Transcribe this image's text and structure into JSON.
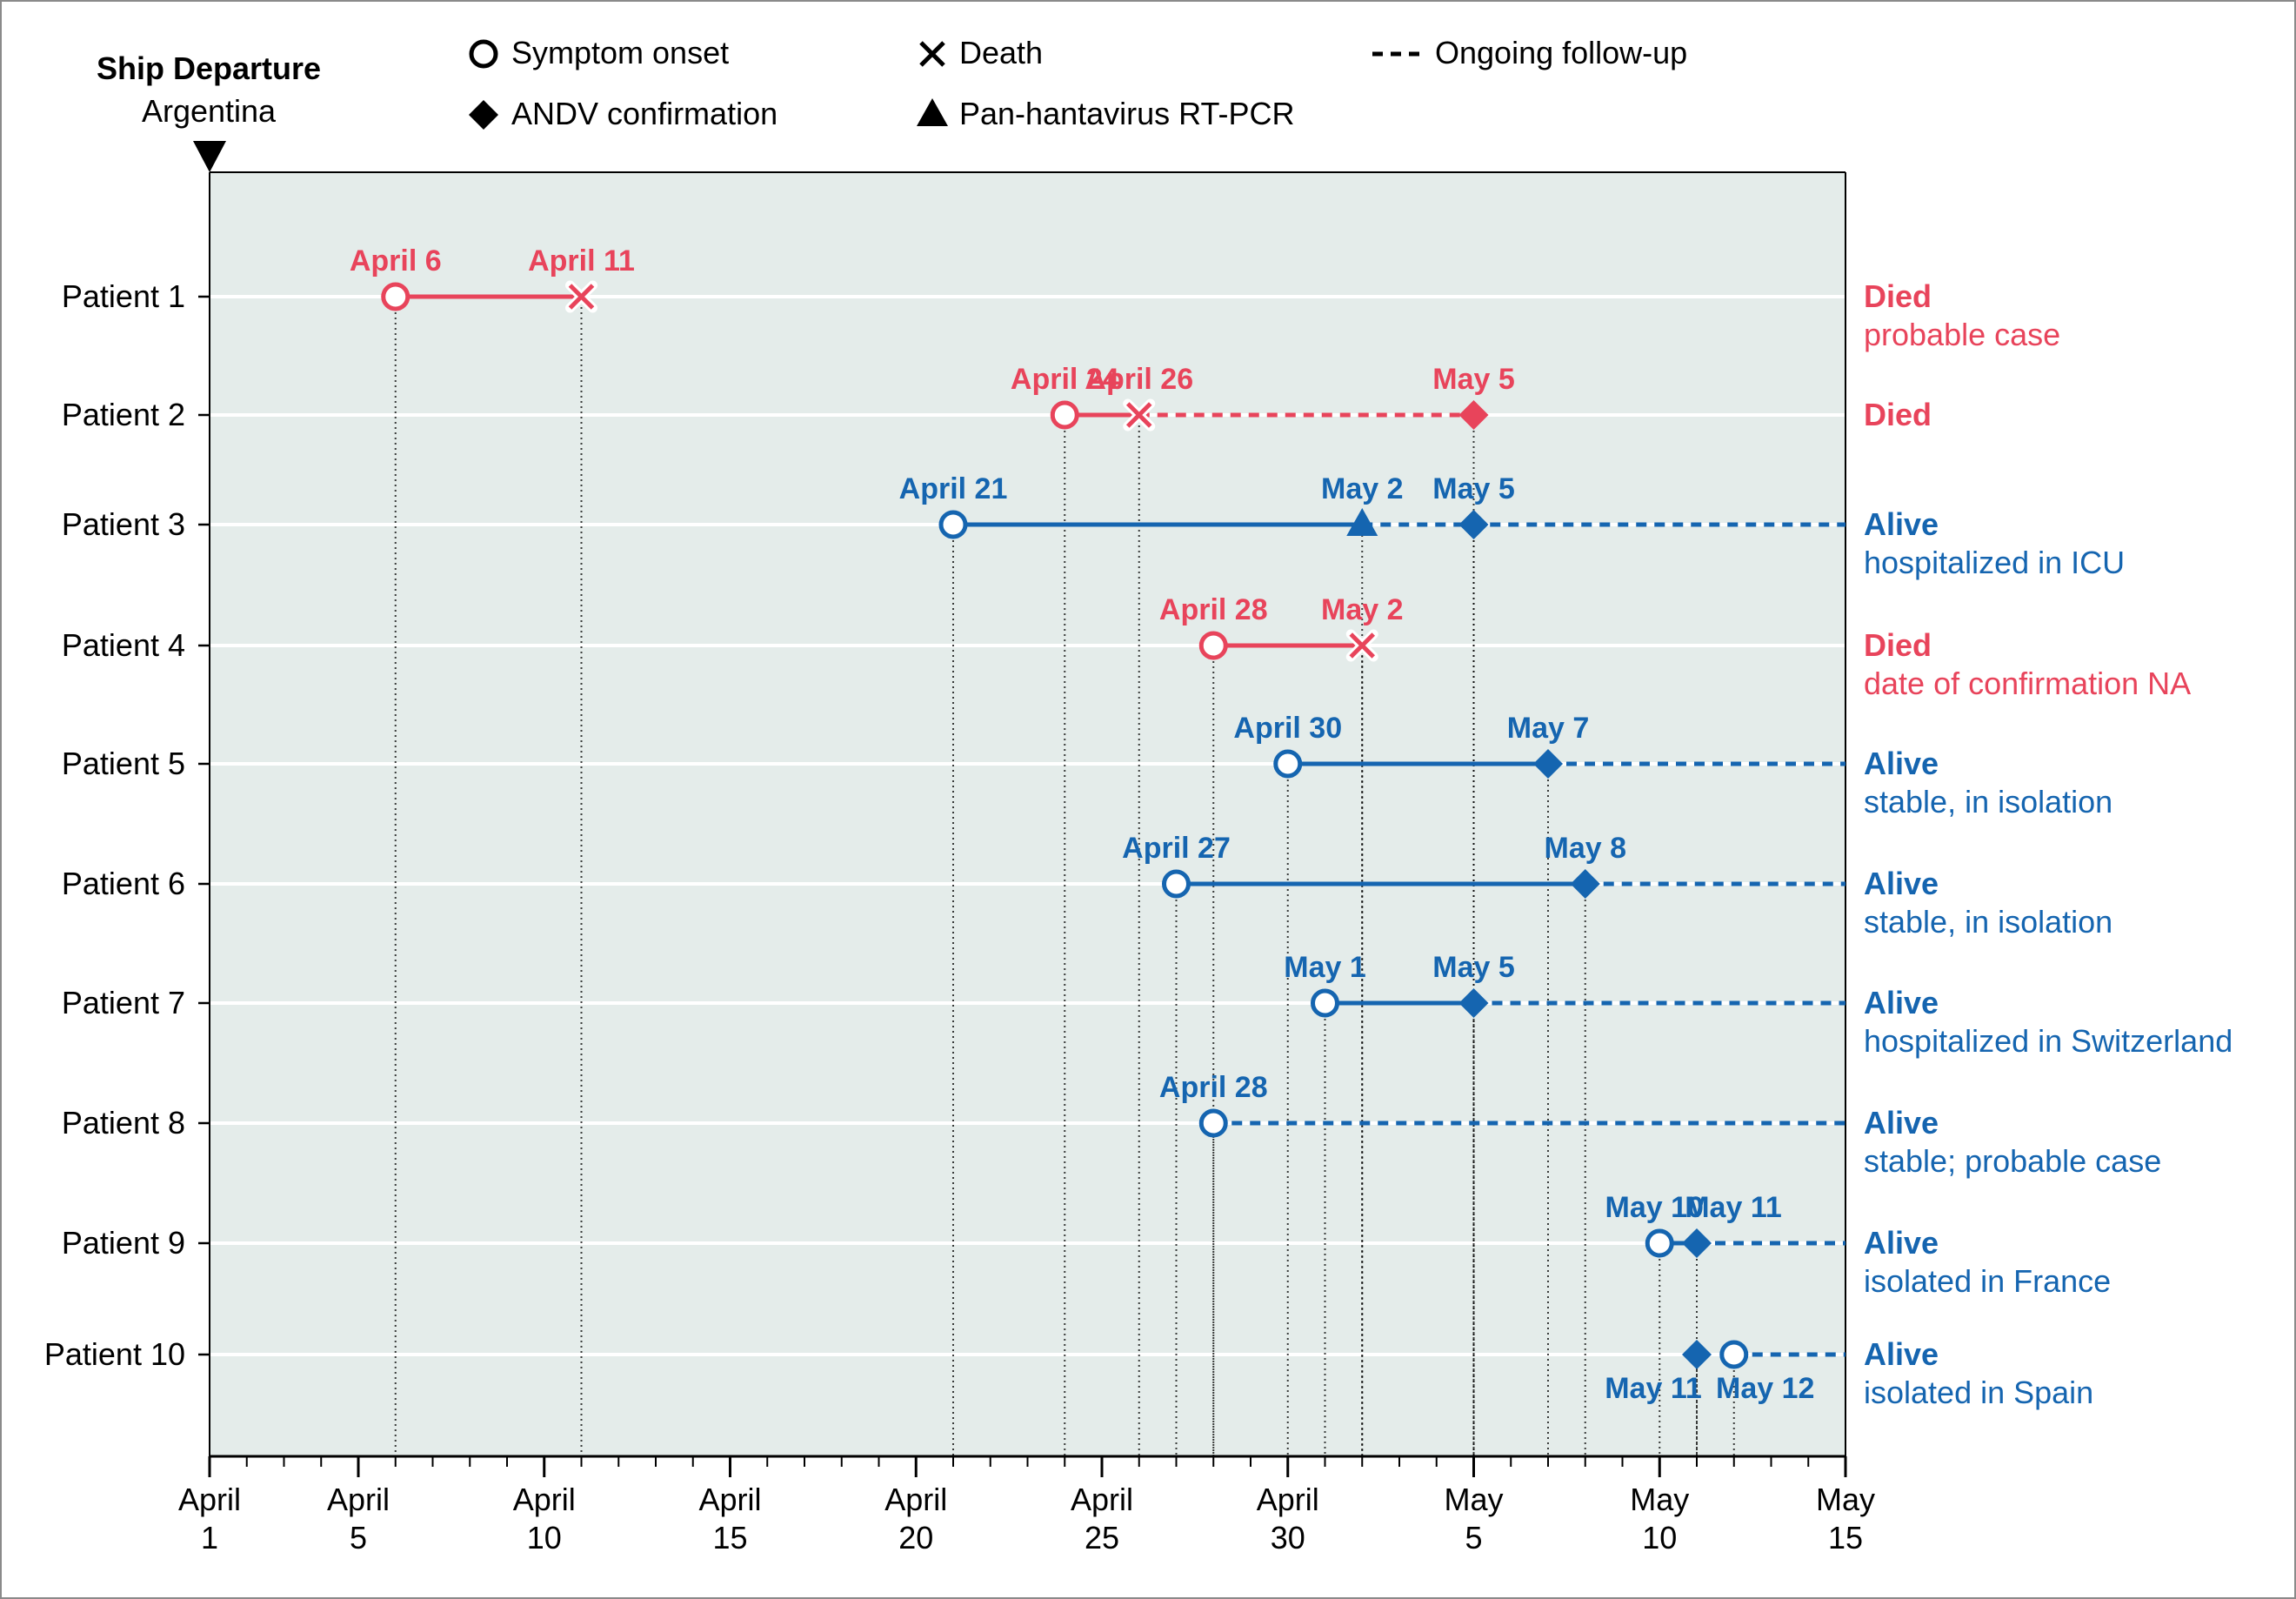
{
  "header": {
    "ship_title": "Ship Departure",
    "ship_subtitle": "Argentina"
  },
  "legend": [
    {
      "symbol": "open-circle",
      "label": "Symptom onset"
    },
    {
      "symbol": "x",
      "label": "Death"
    },
    {
      "symbol": "dashed-line",
      "label": "Ongoing follow-up"
    },
    {
      "symbol": "diamond",
      "label": "ANDV confirmation"
    },
    {
      "symbol": "triangle",
      "label": "Pan-hantavirus RT-PCR"
    }
  ],
  "colors": {
    "died": "#e8445b",
    "alive": "#1565b0",
    "panel": "#e4ecea",
    "gridline": "#ffffff",
    "guide": "#000000",
    "axis": "#000000"
  },
  "chart_data": {
    "type": "timeline",
    "x_axis": {
      "min": "April 1",
      "max": "May 15",
      "ticks": [
        {
          "day": 0,
          "label": [
            "April",
            "1"
          ]
        },
        {
          "day": 4,
          "label": [
            "April",
            "5"
          ]
        },
        {
          "day": 9,
          "label": [
            "April",
            "10"
          ]
        },
        {
          "day": 14,
          "label": [
            "April",
            "15"
          ]
        },
        {
          "day": 19,
          "label": [
            "April",
            "20"
          ]
        },
        {
          "day": 24,
          "label": [
            "April",
            "25"
          ]
        },
        {
          "day": 29,
          "label": [
            "April",
            "30"
          ]
        },
        {
          "day": 34,
          "label": [
            "May",
            "5"
          ]
        },
        {
          "day": 39,
          "label": [
            "May",
            "10"
          ]
        },
        {
          "day": 44,
          "label": [
            "May",
            "15"
          ]
        }
      ],
      "minor_tick_step_days": 1
    },
    "patients": [
      {
        "label": "Patient 1",
        "status": "died",
        "outcome": "Died",
        "note": "probable case",
        "solid": [
          5,
          10
        ],
        "dashed": null,
        "events": [
          {
            "type": "onset",
            "day": 5,
            "date": "April 6",
            "label_pos": "above"
          },
          {
            "type": "death",
            "day": 10,
            "date": "April 11",
            "label_pos": "above"
          }
        ]
      },
      {
        "label": "Patient 2",
        "status": "died",
        "outcome": "Died",
        "note": "",
        "solid": [
          23,
          25
        ],
        "dashed": [
          25,
          34
        ],
        "events": [
          {
            "type": "onset",
            "day": 23,
            "date": "April 24",
            "label_pos": "above"
          },
          {
            "type": "death",
            "day": 25,
            "date": "April 26",
            "label_pos": "above"
          },
          {
            "type": "andv",
            "day": 34,
            "date": "May 5",
            "label_pos": "above"
          }
        ]
      },
      {
        "label": "Patient 3",
        "status": "alive",
        "outcome": "Alive",
        "note": "hospitalized in ICU",
        "solid": [
          20,
          31
        ],
        "dashed": [
          31,
          44
        ],
        "events": [
          {
            "type": "onset",
            "day": 20,
            "date": "April 21",
            "label_pos": "above"
          },
          {
            "type": "pcr",
            "day": 31,
            "date": "May 2",
            "label_pos": "above"
          },
          {
            "type": "andv",
            "day": 34,
            "date": "May 5",
            "label_pos": "above"
          }
        ]
      },
      {
        "label": "Patient 4",
        "status": "died",
        "outcome": "Died",
        "note": "date of confirmation NA",
        "solid": [
          27,
          31
        ],
        "dashed": null,
        "events": [
          {
            "type": "onset",
            "day": 27,
            "date": "April 28",
            "label_pos": "above"
          },
          {
            "type": "death",
            "day": 31,
            "date": "May 2",
            "label_pos": "above"
          }
        ]
      },
      {
        "label": "Patient 5",
        "status": "alive",
        "outcome": "Alive",
        "note": "stable, in isolation",
        "solid": [
          29,
          36
        ],
        "dashed": [
          36,
          44
        ],
        "events": [
          {
            "type": "onset",
            "day": 29,
            "date": "April 30",
            "label_pos": "above"
          },
          {
            "type": "andv",
            "day": 36,
            "date": "May 7",
            "label_pos": "above"
          }
        ]
      },
      {
        "label": "Patient 6",
        "status": "alive",
        "outcome": "Alive",
        "note": "stable, in isolation",
        "solid": [
          26,
          37
        ],
        "dashed": [
          37,
          44
        ],
        "events": [
          {
            "type": "onset",
            "day": 26,
            "date": "April 27",
            "label_pos": "above"
          },
          {
            "type": "andv",
            "day": 37,
            "date": "May 8",
            "label_pos": "above"
          }
        ]
      },
      {
        "label": "Patient 7",
        "status": "alive",
        "outcome": "Alive",
        "note": "hospitalized in Switzerland",
        "solid": [
          30,
          34
        ],
        "dashed": [
          34,
          44
        ],
        "events": [
          {
            "type": "onset",
            "day": 30,
            "date": "May 1",
            "label_pos": "above"
          },
          {
            "type": "andv",
            "day": 34,
            "date": "May 5",
            "label_pos": "above"
          }
        ]
      },
      {
        "label": "Patient 8",
        "status": "alive",
        "outcome": "Alive",
        "note": "stable; probable case",
        "solid": null,
        "dashed": [
          27,
          44
        ],
        "events": [
          {
            "type": "onset",
            "day": 27,
            "date": "April 28",
            "label_pos": "above"
          }
        ]
      },
      {
        "label": "Patient 9",
        "status": "alive",
        "outcome": "Alive",
        "note": "isolated in France",
        "solid": [
          39,
          40
        ],
        "dashed": [
          40,
          44
        ],
        "events": [
          {
            "type": "onset",
            "day": 39,
            "date": "May 10",
            "label_pos": "above"
          },
          {
            "type": "andv",
            "day": 40,
            "date": "May 11",
            "label_pos": "above"
          }
        ]
      },
      {
        "label": "Patient 10",
        "status": "alive",
        "outcome": "Alive",
        "note": "isolated in Spain",
        "solid": null,
        "dashed": [
          41,
          44
        ],
        "events": [
          {
            "type": "andv",
            "day": 40,
            "date": "May 11",
            "label_pos": "below"
          },
          {
            "type": "onset",
            "day": 41,
            "date": "May 12",
            "label_pos": "below"
          }
        ]
      }
    ]
  }
}
